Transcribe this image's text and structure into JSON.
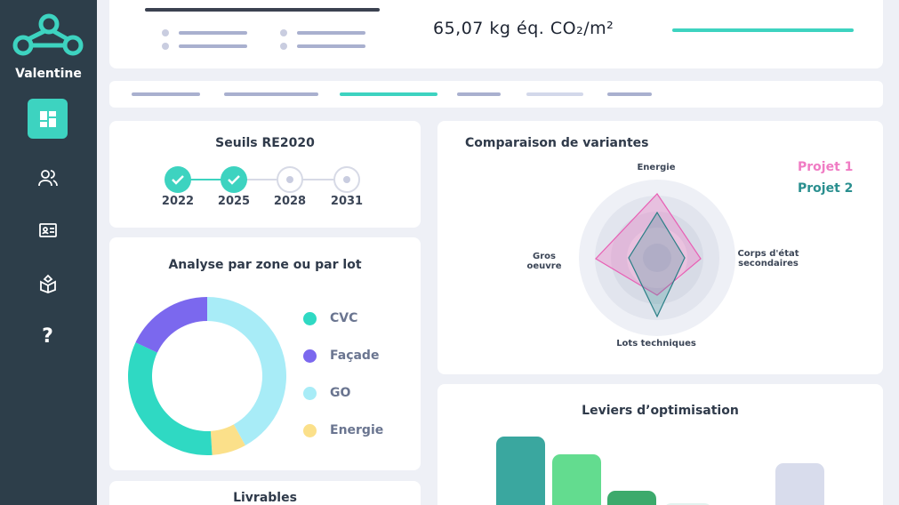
{
  "sidebar": {
    "brand": "Valentine",
    "items": [
      {
        "icon": "dashboard-icon",
        "active": true
      },
      {
        "icon": "users-icon",
        "active": false
      },
      {
        "icon": "id-card-icon",
        "active": false
      },
      {
        "icon": "box-icon",
        "active": false
      },
      {
        "icon": "help-icon",
        "glyph": "?",
        "active": false
      }
    ]
  },
  "header": {
    "kpi": "65,07 kg éq. CO₂/m²",
    "progress": 1.0
  },
  "tabs": {
    "active_index": 2,
    "count": 6
  },
  "thresholds": {
    "title": "Seuils RE2020",
    "steps": [
      {
        "year": "2022",
        "done": true
      },
      {
        "year": "2025",
        "done": true
      },
      {
        "year": "2028",
        "done": false
      },
      {
        "year": "2031",
        "done": false
      }
    ]
  },
  "analysis": {
    "title": "Analyse par zone ou par lot",
    "legend": [
      {
        "label": "CVC",
        "color": "#2fd9c3"
      },
      {
        "label": "Façade",
        "color": "#7b68ee"
      },
      {
        "label": "GO",
        "color": "#a8ecf7"
      },
      {
        "label": "Energie",
        "color": "#fbe08a"
      }
    ]
  },
  "comparison": {
    "title": "Comparaison de variantes",
    "axes": {
      "top": "Energie",
      "right": "Corps d'état secondaires",
      "bottom": "Lots techniques",
      "left": "Gros oeuvre"
    },
    "projects": [
      {
        "name": "Projet 1",
        "color": "#f07cc4"
      },
      {
        "name": "Projet 2",
        "color": "#2a8f8f"
      }
    ]
  },
  "levers": {
    "title": "Leviers d’optimisation"
  },
  "deliverables": {
    "title": "Livrables"
  },
  "chart_data": {
    "type": "pie",
    "categories": [
      "GO",
      "Energie",
      "CVC",
      "Façade"
    ],
    "values": [
      42,
      7,
      33,
      18
    ],
    "colors": [
      "#a8ecf7",
      "#fbe08a",
      "#2fd9c3",
      "#7b68ee"
    ]
  }
}
